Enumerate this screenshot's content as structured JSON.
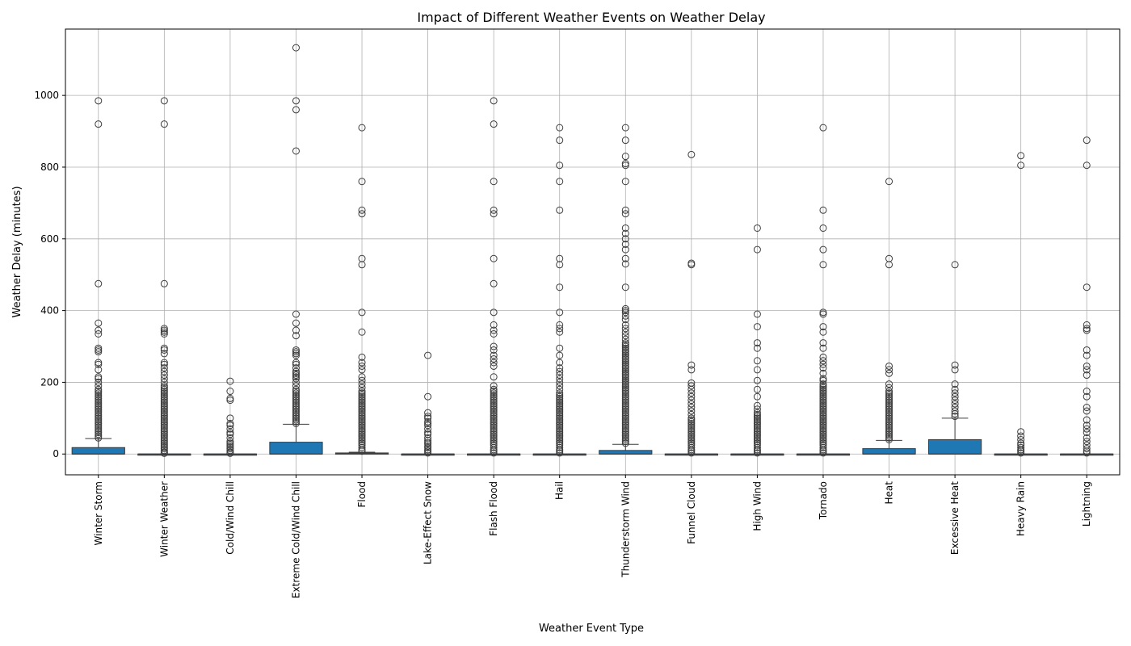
{
  "chart_data": {
    "type": "box",
    "title": "Impact of Different Weather Events on Weather Delay",
    "xlabel": "Weather Event Type",
    "ylabel": "Weather Delay (minutes)",
    "ylim": [
      -58,
      1185
    ],
    "yticks": [
      0,
      200,
      400,
      600,
      800,
      1000
    ],
    "grid": true,
    "box_color": "#1f77b4",
    "median_color": "#3d3d3d",
    "categories": [
      "Winter Storm",
      "Winter Weather",
      "Cold/Wind Chill",
      "Extreme Cold/Wind Chill",
      "Flood",
      "Lake-Effect Snow",
      "Flash Flood",
      "Hail",
      "Thunderstorm Wind",
      "Funnel Cloud",
      "High Wind",
      "Tornado",
      "Heat",
      "Excessive Heat",
      "Heavy Rain",
      "Lightning"
    ],
    "boxes": [
      {
        "category": "Winter Storm",
        "min": 0,
        "q1": 0,
        "median": 0,
        "q3": 18,
        "whisker_high": 43,
        "outliers": [
          45,
          50,
          55,
          60,
          65,
          70,
          75,
          80,
          85,
          90,
          95,
          100,
          105,
          110,
          115,
          120,
          125,
          130,
          135,
          140,
          145,
          150,
          155,
          160,
          165,
          170,
          175,
          180,
          190,
          200,
          210,
          215,
          235,
          250,
          255,
          285,
          290,
          295,
          335,
          345,
          365,
          475,
          920,
          985
        ]
      },
      {
        "category": "Winter Weather",
        "min": 0,
        "q1": 0,
        "median": 0,
        "q3": 0,
        "whisker_high": 0,
        "outliers": [
          2,
          5,
          10,
          15,
          20,
          25,
          30,
          35,
          40,
          45,
          50,
          55,
          60,
          65,
          70,
          75,
          80,
          85,
          90,
          95,
          100,
          105,
          110,
          115,
          120,
          125,
          130,
          135,
          140,
          145,
          150,
          155,
          160,
          165,
          170,
          175,
          180,
          185,
          190,
          200,
          210,
          220,
          230,
          240,
          250,
          255,
          280,
          290,
          295,
          335,
          340,
          345,
          350,
          475,
          920,
          985
        ]
      },
      {
        "category": "Cold/Wind Chill",
        "min": 0,
        "q1": 0,
        "median": 0,
        "q3": 0,
        "whisker_high": 0,
        "outliers": [
          2,
          5,
          10,
          15,
          20,
          25,
          30,
          35,
          45,
          55,
          60,
          70,
          80,
          85,
          100,
          150,
          155,
          175,
          203
        ]
      },
      {
        "category": "Extreme Cold/Wind Chill",
        "min": 0,
        "q1": 0,
        "median": 0,
        "q3": 33,
        "whisker_high": 83,
        "outliers": [
          85,
          90,
          95,
          100,
          105,
          110,
          115,
          120,
          125,
          130,
          135,
          140,
          145,
          150,
          155,
          160,
          165,
          170,
          175,
          180,
          190,
          200,
          210,
          215,
          220,
          225,
          230,
          240,
          250,
          255,
          275,
          280,
          285,
          290,
          330,
          345,
          365,
          390,
          845,
          960,
          985,
          1133
        ]
      },
      {
        "category": "Flood",
        "min": 0,
        "q1": 0,
        "median": 2,
        "q3": 3,
        "whisker_high": 5,
        "outliers": [
          8,
          12,
          18,
          25,
          30,
          35,
          40,
          45,
          50,
          55,
          60,
          65,
          70,
          75,
          80,
          85,
          90,
          95,
          100,
          105,
          110,
          115,
          120,
          125,
          130,
          135,
          140,
          145,
          150,
          155,
          160,
          165,
          170,
          175,
          185,
          195,
          205,
          215,
          235,
          245,
          255,
          270,
          340,
          395,
          528,
          545,
          670,
          680,
          760,
          910
        ]
      },
      {
        "category": "Lake-Effect Snow",
        "min": 0,
        "q1": 0,
        "median": 0,
        "q3": 0,
        "whisker_high": 0,
        "outliers": [
          3,
          8,
          12,
          18,
          22,
          28,
          32,
          38,
          45,
          55,
          60,
          70,
          80,
          85,
          90,
          100,
          105,
          115,
          160,
          275
        ]
      },
      {
        "category": "Flash Flood",
        "min": 0,
        "q1": 0,
        "median": 0,
        "q3": 0,
        "whisker_high": 0,
        "outliers": [
          3,
          8,
          12,
          18,
          25,
          30,
          35,
          40,
          45,
          50,
          55,
          60,
          65,
          70,
          75,
          80,
          85,
          90,
          95,
          100,
          105,
          110,
          115,
          120,
          125,
          130,
          135,
          140,
          145,
          150,
          155,
          160,
          165,
          170,
          175,
          180,
          190,
          215,
          245,
          255,
          265,
          275,
          290,
          300,
          335,
          345,
          360,
          395,
          475,
          545,
          670,
          680,
          760,
          920,
          985
        ]
      },
      {
        "category": "Hail",
        "min": 0,
        "q1": 0,
        "median": 0,
        "q3": 0,
        "whisker_high": 0,
        "outliers": [
          3,
          8,
          12,
          18,
          25,
          30,
          35,
          40,
          45,
          50,
          55,
          60,
          65,
          70,
          75,
          80,
          85,
          90,
          95,
          100,
          105,
          110,
          115,
          120,
          125,
          130,
          135,
          140,
          145,
          150,
          155,
          160,
          165,
          170,
          180,
          190,
          200,
          210,
          220,
          230,
          240,
          255,
          275,
          295,
          340,
          350,
          360,
          395,
          465,
          528,
          545,
          680,
          760,
          805,
          875,
          910
        ]
      },
      {
        "category": "Thunderstorm Wind",
        "min": 0,
        "q1": 0,
        "median": 0,
        "q3": 10,
        "whisker_high": 27,
        "outliers": [
          30,
          35,
          40,
          45,
          50,
          55,
          60,
          65,
          70,
          75,
          80,
          85,
          90,
          95,
          100,
          105,
          110,
          115,
          120,
          125,
          130,
          135,
          140,
          145,
          150,
          155,
          160,
          165,
          170,
          175,
          180,
          185,
          190,
          195,
          200,
          205,
          210,
          215,
          220,
          225,
          230,
          235,
          240,
          245,
          250,
          255,
          260,
          265,
          270,
          275,
          280,
          285,
          290,
          295,
          300,
          305,
          310,
          320,
          330,
          340,
          350,
          360,
          375,
          385,
          395,
          400,
          405,
          465,
          530,
          545,
          570,
          585,
          600,
          615,
          630,
          670,
          680,
          760,
          805,
          810,
          830,
          875,
          910
        ]
      },
      {
        "category": "Funnel Cloud",
        "min": 0,
        "q1": 0,
        "median": 0,
        "q3": 0,
        "whisker_high": 0,
        "outliers": [
          3,
          8,
          12,
          18,
          25,
          30,
          35,
          40,
          45,
          50,
          55,
          60,
          65,
          70,
          75,
          80,
          85,
          90,
          95,
          100,
          110,
          120,
          130,
          140,
          150,
          160,
          170,
          180,
          190,
          198,
          235,
          248,
          528,
          532,
          835
        ]
      },
      {
        "category": "High Wind",
        "min": 0,
        "q1": 0,
        "median": 0,
        "q3": 0,
        "whisker_high": 0,
        "outliers": [
          3,
          8,
          12,
          18,
          25,
          30,
          35,
          40,
          45,
          50,
          55,
          60,
          65,
          70,
          75,
          80,
          85,
          90,
          95,
          100,
          105,
          110,
          115,
          125,
          135,
          160,
          180,
          205,
          235,
          260,
          295,
          310,
          355,
          390,
          570,
          630
        ]
      },
      {
        "category": "Tornado",
        "min": 0,
        "q1": 0,
        "median": 0,
        "q3": 0,
        "whisker_high": 0,
        "outliers": [
          3,
          8,
          12,
          18,
          25,
          30,
          35,
          40,
          45,
          50,
          55,
          60,
          65,
          70,
          75,
          80,
          85,
          90,
          95,
          100,
          105,
          110,
          115,
          120,
          125,
          130,
          135,
          140,
          145,
          150,
          155,
          160,
          165,
          170,
          175,
          180,
          185,
          190,
          195,
          205,
          210,
          225,
          240,
          250,
          260,
          270,
          295,
          310,
          340,
          355,
          390,
          395,
          528,
          570,
          630,
          680,
          910
        ]
      },
      {
        "category": "Heat",
        "min": 0,
        "q1": 0,
        "median": 0,
        "q3": 15,
        "whisker_high": 38,
        "outliers": [
          40,
          45,
          50,
          55,
          60,
          65,
          70,
          75,
          80,
          85,
          90,
          95,
          100,
          105,
          110,
          115,
          120,
          125,
          130,
          135,
          140,
          145,
          150,
          155,
          160,
          165,
          170,
          175,
          185,
          195,
          225,
          235,
          245,
          528,
          545,
          760
        ]
      },
      {
        "category": "Excessive Heat",
        "min": 0,
        "q1": 0,
        "median": 0,
        "q3": 40,
        "whisker_high": 100,
        "outliers": [
          105,
          112,
          120,
          130,
          140,
          150,
          160,
          170,
          180,
          195,
          235,
          248,
          528
        ]
      },
      {
        "category": "Heavy Rain",
        "min": 0,
        "q1": 0,
        "median": 0,
        "q3": 0,
        "whisker_high": 0,
        "outliers": [
          3,
          8,
          12,
          18,
          25,
          30,
          40,
          50,
          62,
          805,
          832
        ]
      },
      {
        "category": "Lightning",
        "min": 0,
        "q1": 0,
        "median": 0,
        "q3": 0,
        "whisker_high": 0,
        "outliers": [
          3,
          8,
          15,
          25,
          35,
          45,
          60,
          70,
          80,
          95,
          120,
          130,
          160,
          175,
          220,
          235,
          245,
          275,
          290,
          345,
          350,
          360,
          465,
          805,
          875
        ]
      }
    ]
  }
}
